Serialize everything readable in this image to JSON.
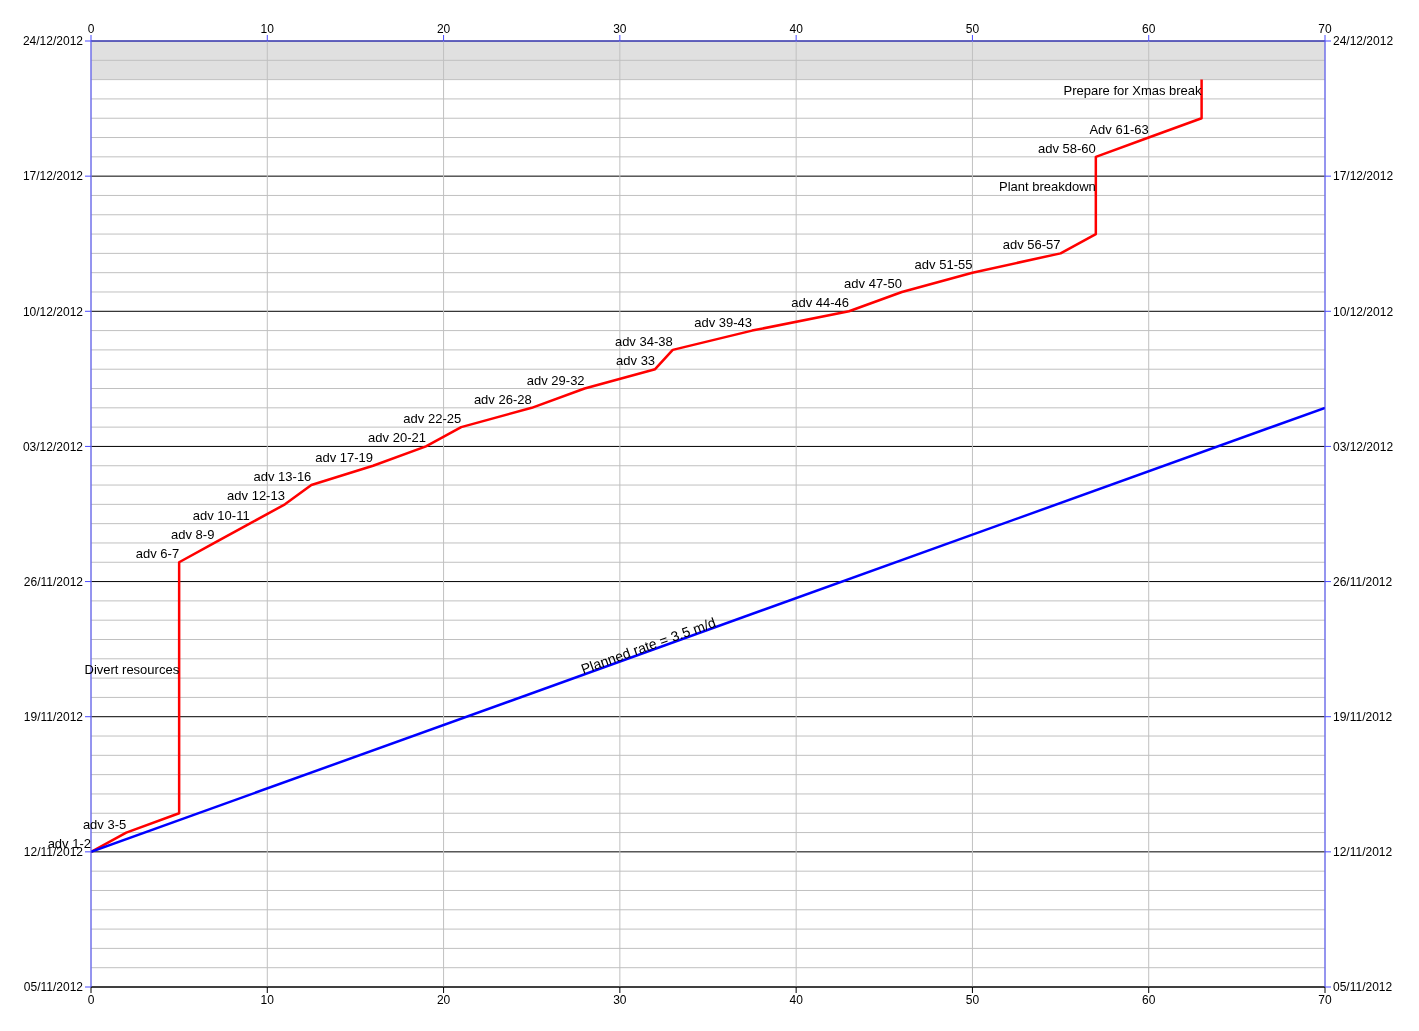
{
  "chart_data": {
    "type": "line",
    "orientation": "horizontal",
    "grid": true,
    "marker": "none",
    "line_style": "solid",
    "xlim": [
      0,
      70
    ],
    "xticks": [
      0,
      10,
      20,
      30,
      40,
      50,
      60,
      70
    ],
    "x2lim": [
      0,
      70
    ],
    "x2ticks": [
      0,
      10,
      20,
      30,
      40,
      50,
      60,
      70
    ],
    "ylim": [
      "2012-11-05",
      "2012-12-24"
    ],
    "yticks": [
      {
        "value": "2012-11-05",
        "label": "05/11/2012"
      },
      {
        "value": "2012-11-06",
        "label": null
      },
      {
        "value": "2012-11-07",
        "label": null
      },
      {
        "value": "2012-11-08",
        "label": null
      },
      {
        "value": "2012-11-09",
        "label": null
      },
      {
        "value": "2012-11-10",
        "label": null
      },
      {
        "value": "2012-11-11",
        "label": null
      },
      {
        "value": "2012-11-12",
        "label": "12/11/2012"
      },
      {
        "value": "2012-11-13",
        "label": null
      },
      {
        "value": "2012-11-14",
        "label": null
      },
      {
        "value": "2012-11-15",
        "label": null
      },
      {
        "value": "2012-11-16",
        "label": null
      },
      {
        "value": "2012-11-17",
        "label": null
      },
      {
        "value": "2012-11-18",
        "label": null
      },
      {
        "value": "2012-11-19",
        "label": "19/11/2012"
      },
      {
        "value": "2012-11-20",
        "label": null
      },
      {
        "value": "2012-11-21",
        "label": null
      },
      {
        "value": "2012-11-22",
        "label": null
      },
      {
        "value": "2012-11-23",
        "label": null
      },
      {
        "value": "2012-11-24",
        "label": null
      },
      {
        "value": "2012-11-25",
        "label": null
      },
      {
        "value": "2012-11-26",
        "label": "26/11/2012"
      },
      {
        "value": "2012-11-27",
        "label": null
      },
      {
        "value": "2012-11-28",
        "label": null
      },
      {
        "value": "2012-11-29",
        "label": null
      },
      {
        "value": "2012-11-30",
        "label": null
      },
      {
        "value": "2012-12-01",
        "label": null
      },
      {
        "value": "2012-12-02",
        "label": null
      },
      {
        "value": "2012-12-03",
        "label": "03/12/2012"
      },
      {
        "value": "2012-12-04",
        "label": null
      },
      {
        "value": "2012-12-05",
        "label": null
      },
      {
        "value": "2012-12-06",
        "label": null
      },
      {
        "value": "2012-12-07",
        "label": null
      },
      {
        "value": "2012-12-08",
        "label": null
      },
      {
        "value": "2012-12-09",
        "label": null
      },
      {
        "value": "2012-12-10",
        "label": "10/12/2012"
      },
      {
        "value": "2012-12-11",
        "label": null
      },
      {
        "value": "2012-12-12",
        "label": null
      },
      {
        "value": "2012-12-13",
        "label": null
      },
      {
        "value": "2012-12-14",
        "label": null
      },
      {
        "value": "2012-12-15",
        "label": null
      },
      {
        "value": "2012-12-16",
        "label": null
      },
      {
        "value": "2012-12-17",
        "label": "17/12/2012"
      },
      {
        "value": "2012-12-18",
        "label": null
      },
      {
        "value": "2012-12-19",
        "label": null
      },
      {
        "value": "2012-12-20",
        "label": null
      },
      {
        "value": "2012-12-21",
        "label": null
      },
      {
        "value": "2012-12-22",
        "label": null
      },
      {
        "value": "2012-12-23",
        "label": null
      },
      {
        "value": "2012-12-24",
        "label": "24/12/2012"
      }
    ],
    "y2lim": [
      "2012-11-05",
      "2012-12-24"
    ],
    "y2ticks": [
      {
        "value": "2012-11-05",
        "label": "05/11/2012"
      },
      {
        "value": "2012-11-12",
        "label": "12/11/2012"
      },
      {
        "value": "2012-11-19",
        "label": "19/11/2012"
      },
      {
        "value": "2012-11-26",
        "label": "26/11/2012"
      },
      {
        "value": "2012-12-03",
        "label": "03/12/2012"
      },
      {
        "value": "2012-12-10",
        "label": "10/12/2012"
      },
      {
        "value": "2012-12-17",
        "label": "17/12/2012"
      },
      {
        "value": "2012-12-24",
        "label": "24/12/2012"
      }
    ],
    "bands": [
      {
        "axis": "y",
        "from": "2012-12-22",
        "to": "2012-12-24",
        "color": "#e0e0e0"
      }
    ],
    "series": [
      {
        "color": "#ff0000",
        "x": [
          "2012-11-12",
          "2012-11-13",
          "2012-11-14",
          "2012-11-27",
          "2012-11-28",
          "2012-11-29",
          "2012-11-30",
          "2012-12-01",
          "2012-12-02",
          "2012-12-03",
          "2012-12-04",
          "2012-12-05",
          "2012-12-06",
          "2012-12-07",
          "2012-12-08",
          "2012-12-09",
          "2012-12-10",
          "2012-12-11",
          "2012-12-12",
          "2012-12-13",
          "2012-12-14",
          "2012-12-18",
          "2012-12-19",
          "2012-12-20",
          "2012-12-22"
        ],
        "values": [
          0,
          2,
          5,
          5,
          7,
          9,
          11,
          12.5,
          16,
          19,
          21,
          25,
          28,
          32,
          33,
          37.5,
          43,
          46,
          50,
          55,
          57,
          57,
          60,
          63,
          63
        ]
      },
      {
        "color": "#0000ff",
        "x": [
          "2012-11-12",
          "2012-12-05"
        ],
        "values": [
          0,
          70
        ]
      }
    ],
    "annotations": [
      {
        "text": "adv 1-2",
        "x": 0,
        "y": "2012-11-12"
      },
      {
        "text": "adv 3-5",
        "x": 2,
        "y": "2012-11-13"
      },
      {
        "text": "Divert resources",
        "x": 5,
        "y": "2012-11-21"
      },
      {
        "text": "adv 6-7",
        "x": 5,
        "y": "2012-11-27"
      },
      {
        "text": "adv 8-9",
        "x": 7,
        "y": "2012-11-28"
      },
      {
        "text": "adv 10-11",
        "x": 9,
        "y": "2012-11-29"
      },
      {
        "text": "adv 12-13",
        "x": 11,
        "y": "2012-11-30"
      },
      {
        "text": "adv 13-16",
        "x": 12.5,
        "y": "2012-12-01"
      },
      {
        "text": "adv 17-19",
        "x": 16,
        "y": "2012-12-02"
      },
      {
        "text": "adv 20-21",
        "x": 19,
        "y": "2012-12-03"
      },
      {
        "text": "adv 22-25",
        "x": 21,
        "y": "2012-12-04"
      },
      {
        "text": "adv 26-28",
        "x": 25,
        "y": "2012-12-05"
      },
      {
        "text": "adv 29-32",
        "x": 28,
        "y": "2012-12-06"
      },
      {
        "text": "adv 33",
        "x": 32,
        "y": "2012-12-07"
      },
      {
        "text": "adv 34-38",
        "x": 33,
        "y": "2012-12-08"
      },
      {
        "text": "adv 39-43",
        "x": 37.5,
        "y": "2012-12-09"
      },
      {
        "text": "adv 44-46",
        "x": 43,
        "y": "2012-12-10"
      },
      {
        "text": "adv 47-50",
        "x": 46,
        "y": "2012-12-11"
      },
      {
        "text": "adv 51-55",
        "x": 50,
        "y": "2012-12-12"
      },
      {
        "text": "adv 56-57",
        "x": 55,
        "y": "2012-12-13"
      },
      {
        "text": "Plant breakdown",
        "x": 57,
        "y": "2012-12-16"
      },
      {
        "text": "adv 58-60",
        "x": 57,
        "y": "2012-12-18"
      },
      {
        "text": "Adv 61-63",
        "x": 60,
        "y": "2012-12-19"
      },
      {
        "text": "Prepare for Xmas break",
        "x": 63,
        "y": "2012-12-21"
      },
      {
        "text": "Planned rate = 3.5 m/d",
        "x": 28,
        "y": "2012-11-21"
      }
    ]
  }
}
